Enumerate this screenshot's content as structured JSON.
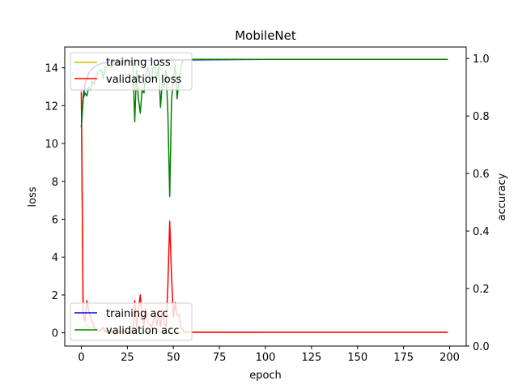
{
  "chart_data": {
    "type": "line",
    "title": "MobileNet",
    "xlabel": "epoch",
    "ylabel": "loss",
    "y2label": "accuracy",
    "xlim": [
      -9,
      209
    ],
    "ylim": [
      -0.7,
      15.1
    ],
    "y2lim": [
      0.0,
      1.04
    ],
    "xticks": [
      0,
      25,
      50,
      75,
      100,
      125,
      150,
      175,
      200
    ],
    "yticks": [
      0,
      2,
      4,
      6,
      8,
      10,
      12,
      14
    ],
    "y2ticks": [
      0.0,
      0.2,
      0.4,
      0.6,
      0.8,
      1.0
    ],
    "legend_loss": {
      "placement": "upper-left",
      "entries": [
        "training loss",
        "validation loss"
      ]
    },
    "legend_acc": {
      "placement": "lower-left",
      "entries": [
        "training acc",
        "validation acc"
      ]
    },
    "series": [
      {
        "name": "training loss",
        "axis": "left",
        "color": "#bfbf00",
        "points": [
          [
            0,
            12.8
          ],
          [
            1,
            1.2
          ],
          [
            2,
            0.6
          ],
          [
            3,
            0.4
          ],
          [
            5,
            0.3
          ],
          [
            8,
            0.2
          ],
          [
            12,
            0.15
          ],
          [
            20,
            0.08
          ],
          [
            30,
            0.05
          ],
          [
            50,
            0.03
          ],
          [
            100,
            0.02
          ],
          [
            199,
            0.02
          ]
        ]
      },
      {
        "name": "validation loss",
        "axis": "left",
        "color": "#ff0000",
        "points": [
          [
            0,
            12.7
          ],
          [
            1,
            1.0
          ],
          [
            2,
            0.6
          ],
          [
            3,
            1.7
          ],
          [
            4,
            1.2
          ],
          [
            5,
            0.8
          ],
          [
            6,
            0.6
          ],
          [
            7,
            0.3
          ],
          [
            8,
            0.2
          ],
          [
            10,
            0.1
          ],
          [
            12,
            0.3
          ],
          [
            13,
            0.05
          ],
          [
            15,
            0.05
          ],
          [
            20,
            0.05
          ],
          [
            28,
            0.05
          ],
          [
            29,
            1.7
          ],
          [
            30,
            0.3
          ],
          [
            31,
            1.2
          ],
          [
            32,
            2.0
          ],
          [
            33,
            0.8
          ],
          [
            34,
            0.4
          ],
          [
            35,
            1.3
          ],
          [
            36,
            0.6
          ],
          [
            38,
            0.3
          ],
          [
            40,
            0.9
          ],
          [
            41,
            0.4
          ],
          [
            42,
            1.2
          ],
          [
            43,
            0.3
          ],
          [
            44,
            1.2
          ],
          [
            45,
            0.5
          ],
          [
            46,
            0.3
          ],
          [
            47,
            2.5
          ],
          [
            48,
            5.9
          ],
          [
            49,
            3.0
          ],
          [
            50,
            0.8
          ],
          [
            51,
            1.6
          ],
          [
            52,
            0.9
          ],
          [
            53,
            1.0
          ],
          [
            54,
            0.3
          ],
          [
            56,
            0.05
          ],
          [
            60,
            0.03
          ],
          [
            80,
            0.03
          ],
          [
            120,
            0.03
          ],
          [
            160,
            0.03
          ],
          [
            199,
            0.03
          ]
        ]
      },
      {
        "name": "training acc",
        "axis": "right",
        "color": "#0000ff",
        "points": [
          [
            0,
            0.76
          ],
          [
            1,
            0.86
          ],
          [
            2,
            0.91
          ],
          [
            3,
            0.93
          ],
          [
            4,
            0.95
          ],
          [
            6,
            0.965
          ],
          [
            8,
            0.975
          ],
          [
            12,
            0.985
          ],
          [
            20,
            0.99
          ],
          [
            30,
            0.993
          ],
          [
            50,
            0.995
          ],
          [
            100,
            0.997
          ],
          [
            199,
            0.997
          ]
        ]
      },
      {
        "name": "validation acc",
        "axis": "right",
        "color": "#008000",
        "points": [
          [
            0,
            0.76
          ],
          [
            1,
            0.86
          ],
          [
            2,
            0.88
          ],
          [
            3,
            0.87
          ],
          [
            4,
            0.9
          ],
          [
            5,
            0.89
          ],
          [
            6,
            0.92
          ],
          [
            7,
            0.91
          ],
          [
            8,
            0.94
          ],
          [
            9,
            0.95
          ],
          [
            10,
            0.96
          ],
          [
            11,
            0.96
          ],
          [
            12,
            0.93
          ],
          [
            13,
            0.97
          ],
          [
            14,
            0.97
          ],
          [
            15,
            0.98
          ],
          [
            16,
            0.97
          ],
          [
            18,
            0.98
          ],
          [
            20,
            0.985
          ],
          [
            22,
            0.98
          ],
          [
            24,
            0.99
          ],
          [
            26,
            0.99
          ],
          [
            28,
            0.985
          ],
          [
            29,
            0.78
          ],
          [
            30,
            0.96
          ],
          [
            31,
            0.86
          ],
          [
            32,
            0.81
          ],
          [
            33,
            0.89
          ],
          [
            34,
            0.88
          ],
          [
            35,
            0.95
          ],
          [
            36,
            0.97
          ],
          [
            37,
            0.94
          ],
          [
            38,
            0.93
          ],
          [
            39,
            0.97
          ],
          [
            40,
            0.97
          ],
          [
            41,
            0.93
          ],
          [
            42,
            0.98
          ],
          [
            43,
            0.83
          ],
          [
            44,
            0.92
          ],
          [
            45,
            0.9
          ],
          [
            46,
            0.96
          ],
          [
            47,
            0.81
          ],
          [
            48,
            0.52
          ],
          [
            49,
            0.86
          ],
          [
            50,
            0.92
          ],
          [
            51,
            0.98
          ],
          [
            52,
            0.86
          ],
          [
            53,
            0.92
          ],
          [
            54,
            0.97
          ],
          [
            55,
            0.99
          ],
          [
            56,
            0.996
          ],
          [
            60,
            0.997
          ],
          [
            100,
            0.997
          ],
          [
            150,
            0.997
          ],
          [
            199,
            0.997
          ]
        ]
      }
    ]
  }
}
